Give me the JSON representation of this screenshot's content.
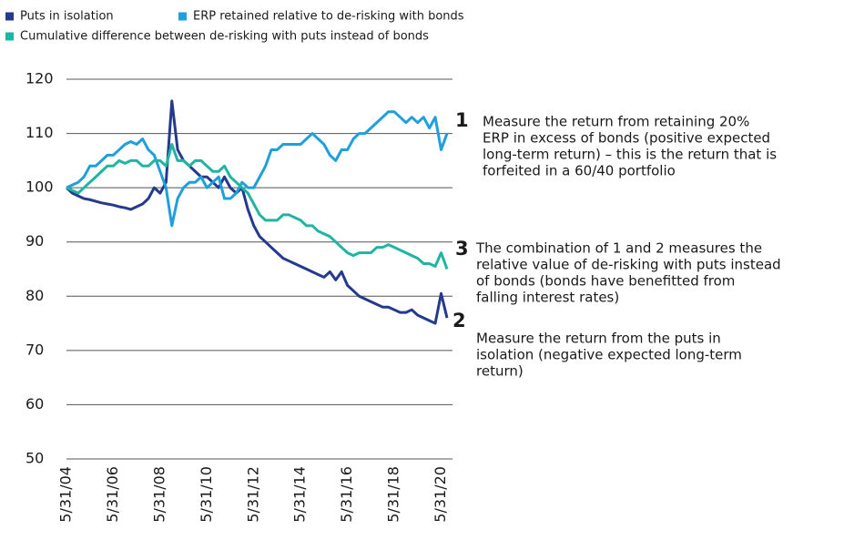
{
  "chart_data": {
    "type": "line",
    "x": [
      "5/31/04",
      "8/31/04",
      "11/30/04",
      "2/28/05",
      "5/31/05",
      "8/31/05",
      "11/30/05",
      "2/28/06",
      "5/31/06",
      "8/31/06",
      "11/30/06",
      "2/28/07",
      "5/31/07",
      "8/31/07",
      "11/30/07",
      "2/29/08",
      "5/31/08",
      "8/31/08",
      "11/30/08",
      "2/28/09",
      "5/31/09",
      "8/31/09",
      "11/30/09",
      "2/28/10",
      "5/31/10",
      "8/31/10",
      "11/30/10",
      "2/28/11",
      "5/31/11",
      "8/31/11",
      "11/30/11",
      "2/29/12",
      "5/31/12",
      "8/31/12",
      "11/30/12",
      "2/28/13",
      "5/31/13",
      "8/31/13",
      "11/30/13",
      "2/28/14",
      "5/31/14",
      "8/31/14",
      "11/30/14",
      "2/28/15",
      "5/31/15",
      "8/31/15",
      "11/30/15",
      "2/29/16",
      "5/31/16",
      "8/31/16",
      "11/30/16",
      "2/28/17",
      "5/31/17",
      "8/31/17",
      "11/30/17",
      "2/28/18",
      "5/31/18",
      "8/31/18",
      "11/30/18",
      "2/28/19",
      "5/31/19",
      "8/31/19",
      "11/30/19",
      "2/29/20",
      "5/31/20",
      "8/31/20"
    ],
    "series": [
      {
        "name": "Puts in isolation",
        "color": "#253a8c",
        "values": [
          100,
          99,
          98.5,
          98,
          97.8,
          97.5,
          97.2,
          97,
          96.8,
          96.5,
          96.3,
          96,
          96.5,
          97,
          98,
          100,
          99,
          101,
          116,
          107,
          105,
          104,
          103,
          102,
          102,
          101,
          100,
          102,
          100,
          99,
          100,
          96,
          93,
          91,
          90,
          89,
          88,
          87,
          86.5,
          86,
          85.5,
          85,
          84.5,
          84,
          83.5,
          84.5,
          83,
          84.5,
          82,
          81,
          80,
          79.5,
          79,
          78.5,
          78,
          78,
          77.5,
          77,
          77,
          77.5,
          76.5,
          76,
          75.5,
          75,
          80.5,
          76
        ]
      },
      {
        "name": "ERP retained relative to de-risking with bonds",
        "color": "#1fa0dc",
        "values": [
          100,
          100.5,
          101,
          102,
          104,
          104,
          105,
          106,
          106,
          107,
          108,
          108.5,
          108,
          109,
          107,
          106,
          103,
          100,
          93,
          98,
          100,
          101,
          101,
          102,
          100,
          101,
          102,
          98,
          98,
          99,
          101,
          100,
          100,
          102,
          104,
          107,
          107,
          108,
          108,
          108,
          108,
          109,
          110,
          109,
          108,
          106,
          105,
          107,
          107,
          109,
          110,
          110,
          111,
          112,
          113,
          114,
          114,
          113,
          112,
          113,
          112,
          113,
          111,
          113,
          107,
          110
        ]
      },
      {
        "name": "Cumulative difference between de-risking with puts instead of bonds",
        "color": "#20b5a3",
        "values": [
          100,
          99.5,
          99,
          100,
          101,
          102,
          103,
          104,
          104,
          105,
          104.5,
          105,
          105,
          104,
          104,
          105,
          105,
          104,
          108,
          105,
          105,
          104,
          105,
          105,
          104,
          103,
          103,
          104,
          102,
          101,
          100,
          99,
          97,
          95,
          94,
          94,
          94,
          95,
          95,
          94.5,
          94,
          93,
          93,
          92,
          91.5,
          91,
          90,
          89,
          88,
          87.5,
          88,
          88,
          88,
          89,
          89,
          89.5,
          89,
          88.5,
          88,
          87.5,
          87,
          86,
          86,
          85.5,
          88,
          85
        ]
      }
    ],
    "xlim": [
      "5/31/04",
      "8/31/20"
    ],
    "xticks": [
      "5/31/04",
      "5/31/06",
      "5/31/08",
      "5/31/10",
      "5/31/12",
      "5/31/14",
      "5/31/16",
      "5/31/18",
      "5/31/20"
    ],
    "ylim": [
      50,
      120
    ],
    "yticks": [
      50,
      60,
      70,
      80,
      90,
      100,
      110,
      120
    ],
    "grid": true,
    "annotations": [
      {
        "label": "1",
        "lines": [
          "Measure the return from retaining 20%",
          "ERP in excess of bonds (positive expected",
          "long-term return) – this is the return that is",
          "forfeited in a 60/40 portfolio"
        ]
      },
      {
        "label": "3",
        "lines": [
          "The combination of 1 and 2 measures the",
          "relative value of de-risking with puts instead",
          "of bonds (bonds have benefitted from",
          "falling interest rates)"
        ]
      },
      {
        "label": "2",
        "lines": [
          "Measure the return from the puts in",
          "isolation (negative expected long-term",
          "return)"
        ]
      }
    ]
  }
}
